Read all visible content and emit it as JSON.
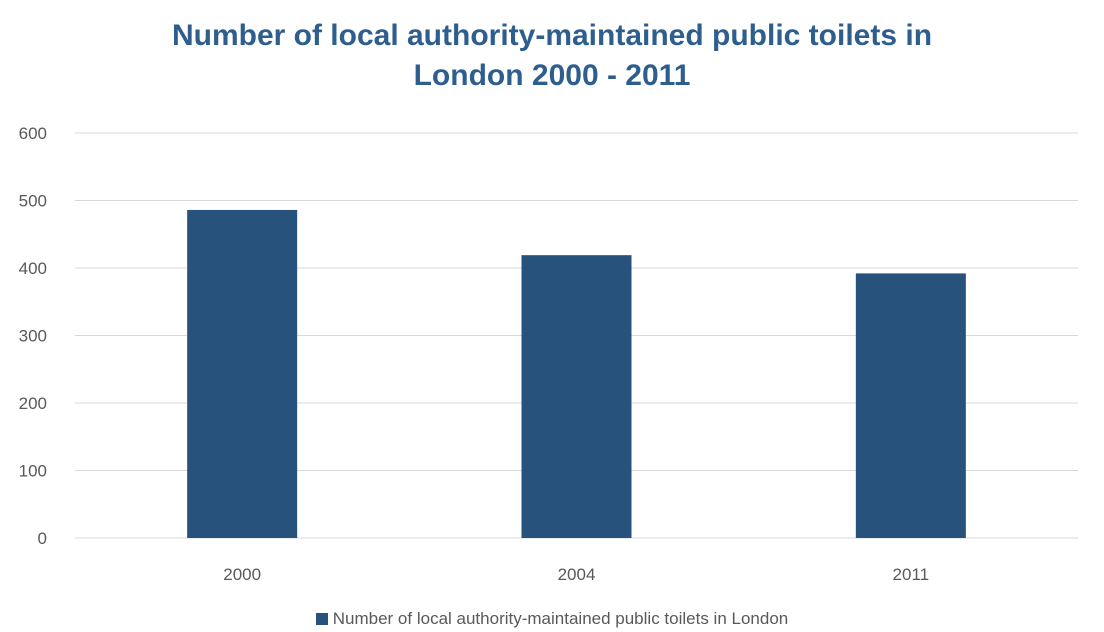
{
  "chart_data": {
    "type": "bar",
    "title_lines": [
      "Number of local authority-maintained public toilets in",
      "London 2000 - 2011"
    ],
    "categories": [
      "2000",
      "2004",
      "2011"
    ],
    "series": [
      {
        "name": "Number of local authority-maintained public toilets in London",
        "values": [
          486,
          419,
          392
        ],
        "color": "#27527b"
      }
    ],
    "ylim": [
      0,
      600
    ],
    "yticks": [
      "0",
      "100",
      "200",
      "300",
      "400",
      "500",
      "600"
    ],
    "grid": true,
    "legend_position": "bottom",
    "colors": {
      "title": "#2e5e8e",
      "gridline": "#d9d9d9",
      "tick_text": "#595959"
    }
  }
}
